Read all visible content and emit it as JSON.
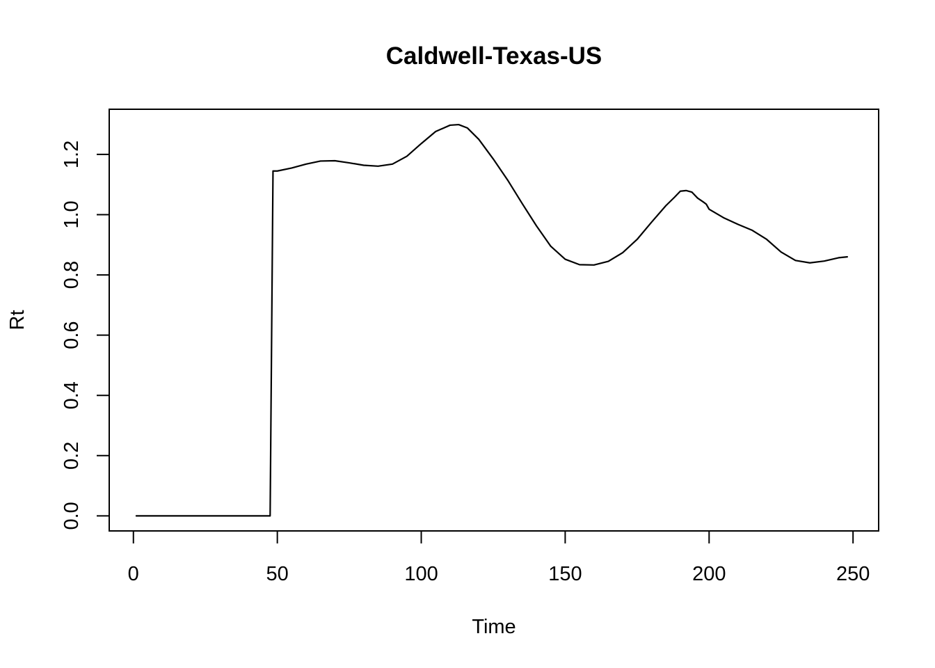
{
  "chart_data": {
    "type": "line",
    "title": "Caldwell-Texas-US",
    "xlabel": "Time",
    "ylabel": "Rt",
    "xlim": [
      -8.4,
      258.9
    ],
    "ylim": [
      -0.05,
      1.35
    ],
    "x_ticks": [
      0,
      50,
      100,
      150,
      200,
      250
    ],
    "y_ticks": [
      0.0,
      0.2,
      0.4,
      0.6,
      0.8,
      1.0,
      1.2
    ],
    "x_tick_labels": [
      "0",
      "50",
      "100",
      "150",
      "200",
      "250"
    ],
    "y_tick_labels": [
      "0.0",
      "0.2",
      "0.4",
      "0.6",
      "0.8",
      "1.0",
      "1.2"
    ],
    "grid": false,
    "legend": "none",
    "line_color": "#000000",
    "series": [
      {
        "x": [
          1,
          10,
          20,
          30,
          40,
          47.5,
          48.5,
          50,
          55,
          60,
          65,
          70,
          75,
          80,
          85,
          90,
          95,
          100,
          105,
          110,
          113,
          116,
          120,
          125,
          130,
          135,
          140,
          145,
          150,
          155,
          160,
          165,
          170,
          175,
          180,
          185,
          188,
          190,
          192,
          194,
          196,
          198,
          199,
          200,
          205,
          210,
          215,
          220,
          225,
          230,
          235,
          240,
          245,
          248
        ],
        "y": [
          0.0,
          0.0,
          0.0,
          0.0,
          0.0,
          0.0,
          1.145,
          1.145,
          1.155,
          1.168,
          1.178,
          1.179,
          1.172,
          1.164,
          1.161,
          1.168,
          1.194,
          1.236,
          1.276,
          1.297,
          1.299,
          1.288,
          1.25,
          1.185,
          1.115,
          1.038,
          0.963,
          0.895,
          0.852,
          0.834,
          0.833,
          0.845,
          0.874,
          0.918,
          0.975,
          1.03,
          1.058,
          1.078,
          1.08,
          1.075,
          1.055,
          1.042,
          1.035,
          1.018,
          0.99,
          0.968,
          0.948,
          0.918,
          0.876,
          0.848,
          0.84,
          0.846,
          0.857,
          0.86
        ]
      }
    ]
  }
}
